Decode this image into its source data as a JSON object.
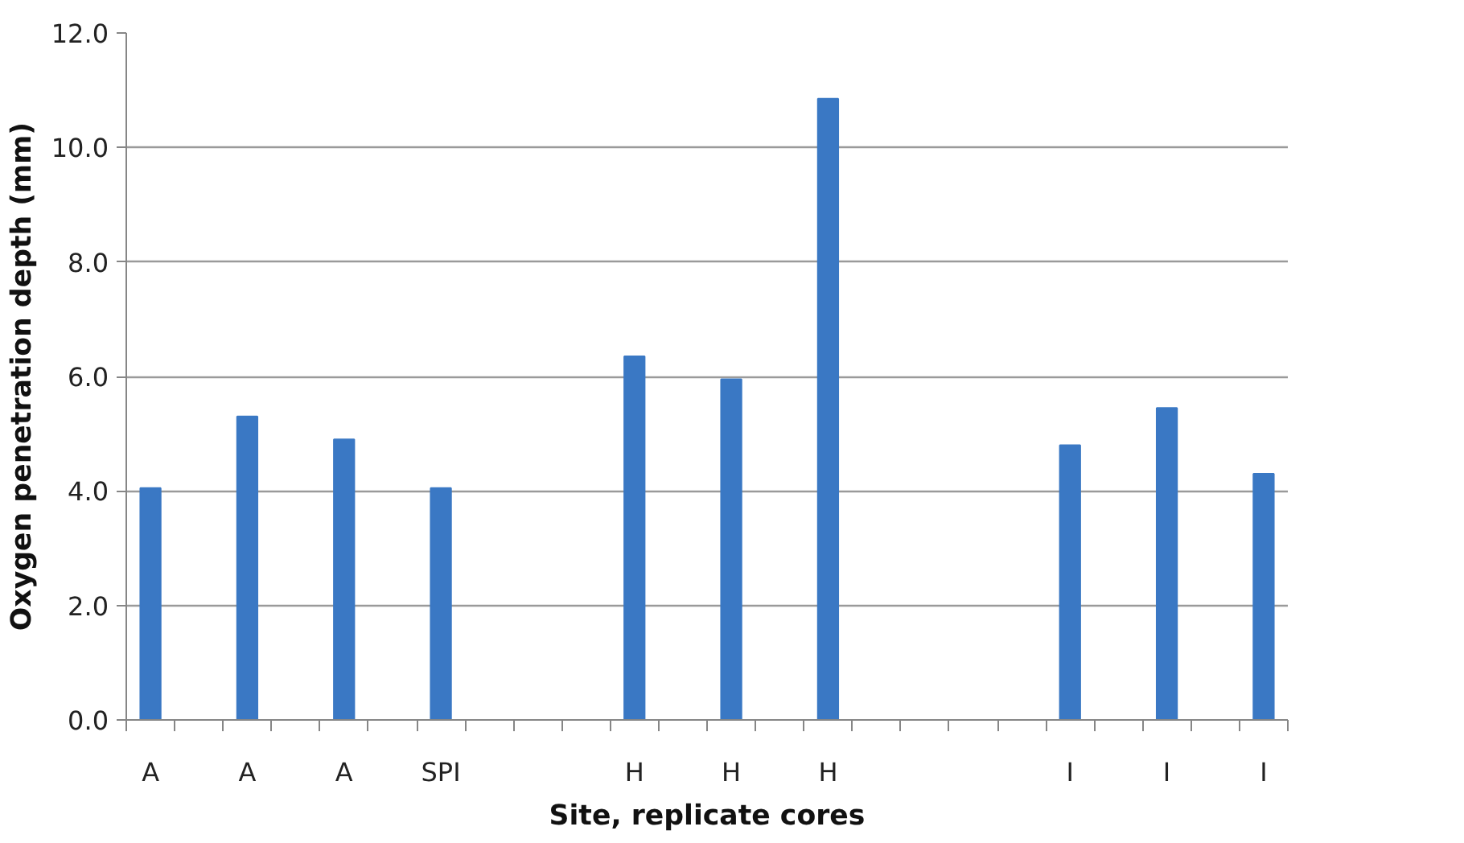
{
  "chart_data": {
    "type": "bar",
    "xlabel": "Site, replicate cores",
    "ylabel": "Oxygen penetration depth (mm)",
    "categories": [
      "A",
      null,
      "A",
      null,
      "A",
      null,
      "SPI",
      null,
      null,
      null,
      "H",
      null,
      "H",
      null,
      "H",
      null,
      null,
      null,
      null,
      "I",
      null,
      "I",
      null,
      "I"
    ],
    "values": [
      4.05,
      null,
      5.3,
      null,
      4.9,
      null,
      4.05,
      null,
      null,
      null,
      6.35,
      null,
      5.95,
      null,
      10.85,
      null,
      null,
      null,
      null,
      4.8,
      null,
      5.45,
      null,
      4.3
    ],
    "color": "#3a78c4",
    "ylim": [
      0,
      12
    ],
    "yticks": [
      {
        "value": 0,
        "label": "0.0"
      },
      {
        "value": 2,
        "label": "2.0"
      },
      {
        "value": 4,
        "label": "4.0"
      },
      {
        "value": 6,
        "label": "6.0"
      },
      {
        "value": 8,
        "label": "8.0"
      },
      {
        "value": 10,
        "label": "10.0"
      },
      {
        "value": 12,
        "label": "12.0"
      }
    ],
    "grid": "y"
  }
}
